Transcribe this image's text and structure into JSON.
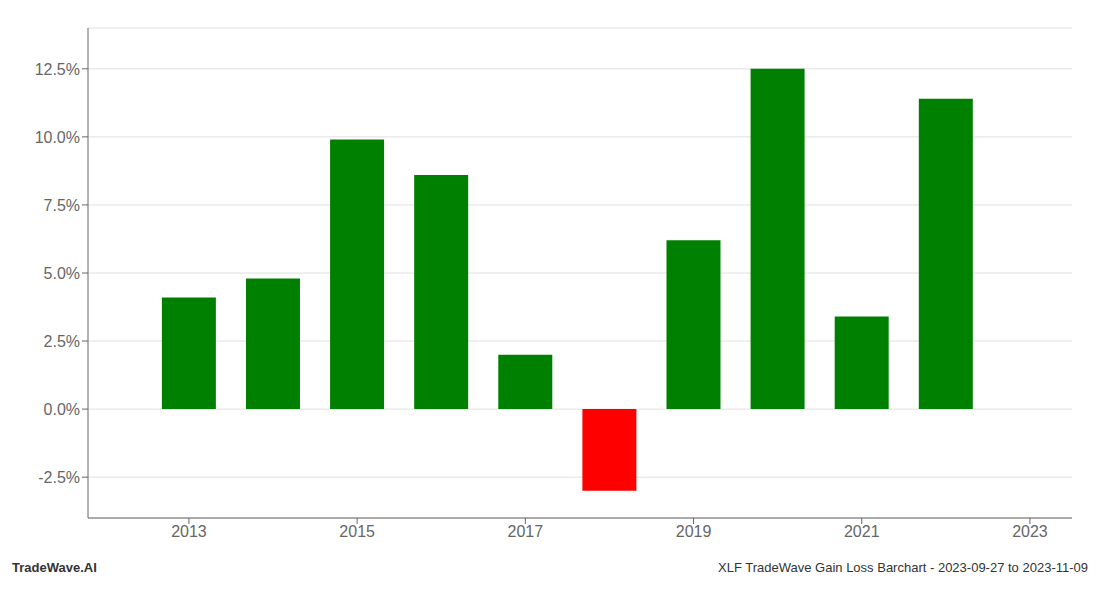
{
  "chart_data": {
    "type": "bar",
    "x": [
      2013,
      2014,
      2015,
      2016,
      2017,
      2018,
      2019,
      2020,
      2021,
      2022
    ],
    "values": [
      0.041,
      0.048,
      0.099,
      0.086,
      0.02,
      -0.03,
      0.062,
      0.125,
      0.034,
      0.114
    ],
    "colors": [
      "#008000",
      "#008000",
      "#008000",
      "#008000",
      "#008000",
      "#ff0000",
      "#008000",
      "#008000",
      "#008000",
      "#008000"
    ],
    "xlim": [
      2011.8,
      2023.5
    ],
    "xticks": [
      2013,
      2015,
      2017,
      2019,
      2021,
      2023
    ],
    "ylim": [
      -0.04,
      0.14
    ],
    "yticks": [
      {
        "value": -0.025,
        "label": "-2.5%"
      },
      {
        "value": 0.0,
        "label": "0.0%"
      },
      {
        "value": 0.025,
        "label": "2.5%"
      },
      {
        "value": 0.05,
        "label": "5.0%"
      },
      {
        "value": 0.075,
        "label": "7.5%"
      },
      {
        "value": 0.1,
        "label": "10.0%"
      },
      {
        "value": 0.125,
        "label": "12.5%"
      }
    ],
    "grid": true,
    "annotations": [
      "TradeWave.AI",
      "XLF TradeWave Gain Loss Barchart - 2023-09-27 to 2023-11-09"
    ]
  }
}
